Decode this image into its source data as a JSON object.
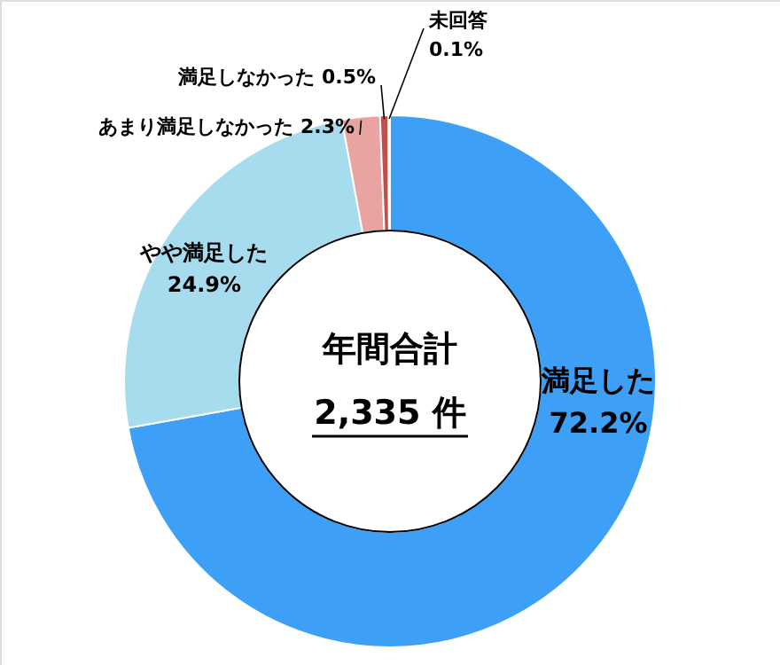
{
  "chart_data": {
    "type": "donut",
    "categories": [
      "満足した",
      "やや満足した",
      "あまり満足しなかった",
      "満足しなかった",
      "未回答"
    ],
    "values": [
      72.2,
      24.9,
      2.3,
      0.5,
      0.1
    ],
    "value_labels": [
      "72.2%",
      "24.9%",
      "2.3%",
      "0.5%",
      "0.1%"
    ],
    "colors": [
      "#3d9ff5",
      "#a6dcee",
      "#e9a3a0",
      "#c0504d",
      "#a0a0a0"
    ],
    "annotations": [
      "年間合計",
      "2,335 件"
    ]
  }
}
